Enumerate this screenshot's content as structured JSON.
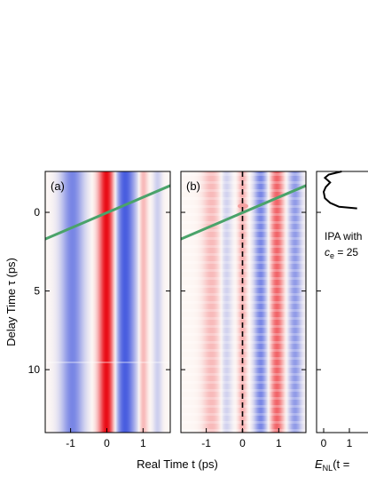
{
  "chart_data": [
    {
      "type": "heatmap",
      "panel_label": "(a)",
      "x_ticks": [
        "-1",
        "0",
        "1"
      ],
      "y_ticks": [
        "0",
        "5",
        "10"
      ],
      "xlim": [
        -1.7,
        1.75
      ],
      "ylim": [
        -2.6,
        14
      ],
      "xlabel": "Real Time t (ps)",
      "ylabel": "Delay Time τ (ps)",
      "bands": [
        {
          "t": -0.95,
          "width": 0.32,
          "sign": "negative",
          "strength": 0.55
        },
        {
          "t": 0.0,
          "width": 0.22,
          "sign": "positive",
          "strength": 1.0
        },
        {
          "t": 0.5,
          "width": 0.3,
          "sign": "negative",
          "strength": 0.75
        },
        {
          "t": 1.0,
          "width": 0.12,
          "sign": "positive",
          "strength": 0.3
        },
        {
          "t": 1.4,
          "width": 0.12,
          "sign": "negative",
          "strength": 0.2
        }
      ],
      "diagonal_line": {
        "points": [
          [
            -1.7,
            1.7
          ],
          [
            1.75,
            -1.7
          ]
        ],
        "color": "#4aa36a"
      }
    },
    {
      "type": "heatmap",
      "panel_label": "(b)",
      "x_ticks": [
        "-1",
        "0",
        "1"
      ],
      "xlim": [
        -1.7,
        1.75
      ],
      "ylim": [
        -2.6,
        14
      ],
      "bands": [
        {
          "t": -0.85,
          "width": 0.25,
          "sign": "positive",
          "strength": 0.25
        },
        {
          "t": -0.45,
          "width": 0.15,
          "sign": "negative",
          "strength": 0.2
        },
        {
          "t": 0.0,
          "width": 0.12,
          "sign": "positive",
          "strength": 0.3
        },
        {
          "t": 0.5,
          "width": 0.18,
          "sign": "negative",
          "strength": 0.55
        },
        {
          "t": 0.95,
          "width": 0.18,
          "sign": "positive",
          "strength": 0.6
        },
        {
          "t": 1.45,
          "width": 0.18,
          "sign": "negative",
          "strength": 0.45
        }
      ],
      "dashed_line_t": 0,
      "diagonal_line": {
        "points": [
          [
            -1.7,
            1.7
          ],
          [
            1.75,
            -1.7
          ]
        ],
        "color": "#4aa36a"
      }
    },
    {
      "type": "line",
      "x_ticks": [
        "0",
        "1"
      ],
      "annotation_line1": "IPA with",
      "annotation_line2": "c",
      "annotation_sub": "e",
      "annotation_rest": " = 25",
      "xlabel_main": "E",
      "xlabel_sub": "NL",
      "xlabel_rest": "(t =",
      "curve": [
        [
          0.7,
          -2.6
        ],
        [
          0.2,
          -2.4
        ],
        [
          0.05,
          -2.2
        ],
        [
          0.25,
          -1.9
        ],
        [
          0.08,
          -1.6
        ],
        [
          0.0,
          -1.3
        ],
        [
          0.05,
          -0.9
        ],
        [
          0.25,
          -0.6
        ],
        [
          0.6,
          -0.35
        ],
        [
          1.3,
          -0.25
        ]
      ]
    }
  ],
  "colors": {
    "positive": "#e8000a",
    "negative": "#0a28d8",
    "line": "#4aa36a",
    "background": "#fdf7f4"
  }
}
